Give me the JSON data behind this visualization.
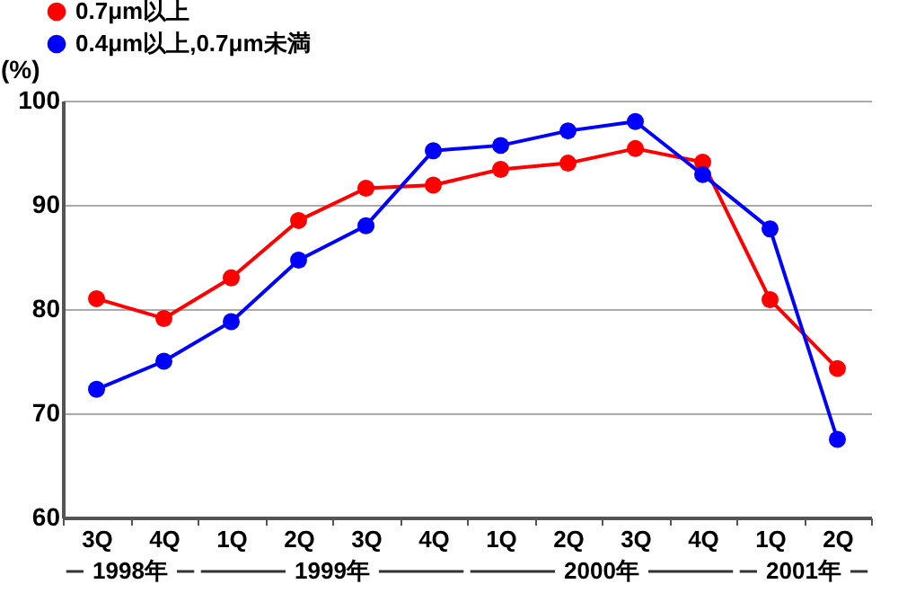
{
  "chart_data": {
    "type": "line",
    "ylabel": "(%)",
    "categories": [
      "3Q",
      "4Q",
      "1Q",
      "2Q",
      "3Q",
      "4Q",
      "1Q",
      "2Q",
      "3Q",
      "4Q",
      "1Q",
      "2Q"
    ],
    "series": [
      {
        "name": "0.7μm以上",
        "color": "#ff0000",
        "values": [
          81.0,
          79.1,
          83.0,
          88.5,
          91.6,
          91.9,
          93.4,
          94.0,
          95.4,
          94.1,
          80.9,
          74.3
        ]
      },
      {
        "name": "0.4μm以上,0.7μm未満",
        "color": "#0000ff",
        "values": [
          72.3,
          75.0,
          78.8,
          84.7,
          88.0,
          95.2,
          95.7,
          97.1,
          98.0,
          92.9,
          87.7,
          67.5
        ]
      }
    ],
    "ylim": [
      60,
      100
    ],
    "yticks": [
      60,
      70,
      80,
      90,
      100
    ],
    "grid": "y",
    "legend": "top left",
    "marker": "circle",
    "line_style": "solid",
    "annotations": [
      "1998年",
      "1999年",
      "2000年",
      "2001年"
    ]
  }
}
